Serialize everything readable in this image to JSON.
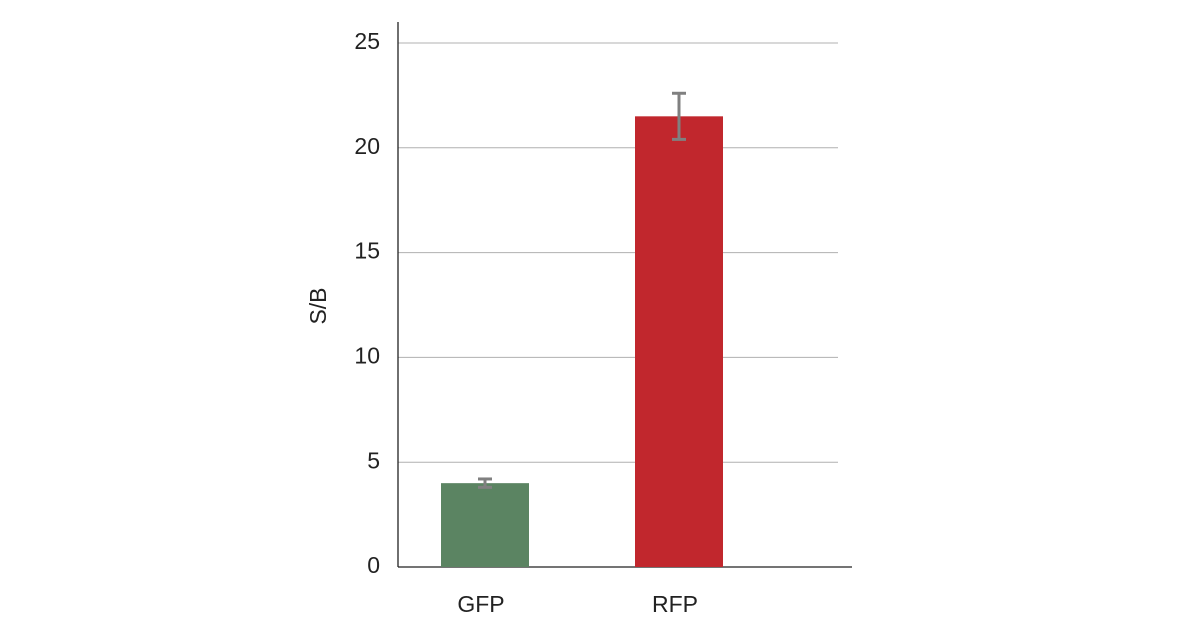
{
  "chart_data": {
    "type": "bar",
    "y_label": "S/B",
    "categories": [
      "GFP",
      "RFP"
    ],
    "values": [
      4.0,
      21.5
    ],
    "errors": [
      0.2,
      1.1
    ],
    "colors": [
      "#5b8462",
      "#c1272d"
    ],
    "error_color": "#808080",
    "ylim": [
      0,
      26
    ],
    "yticks": [
      0,
      5,
      10,
      15,
      20,
      25
    ],
    "grid": true
  }
}
